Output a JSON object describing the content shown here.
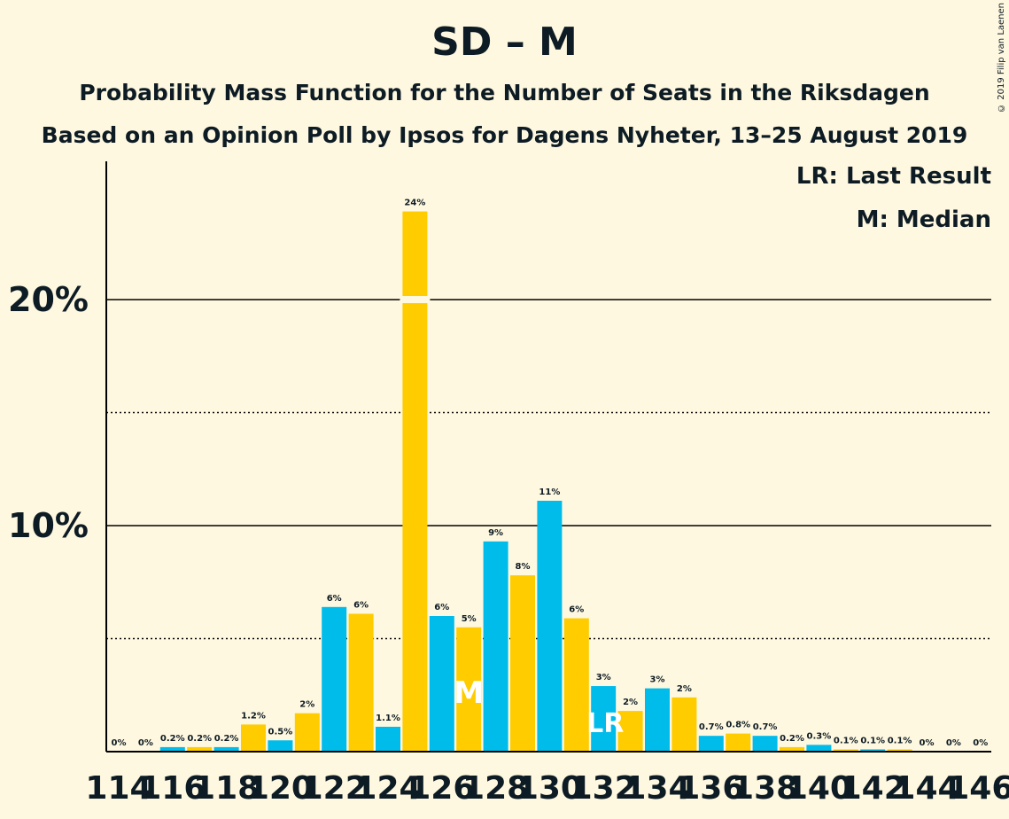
{
  "title": "SD – M",
  "subtitle_line1": "Probability Mass Function for the Number of Seats in the Riksdagen",
  "subtitle_line2": "Based on an Opinion Poll by Ipsos for Dagens Nyheter, 13–25 August 2019",
  "legend": {
    "last_result": "LR: Last Result",
    "median": "M: Median"
  },
  "copyright": "© 2019 Filip van Laenen",
  "colors": {
    "yellow": "#FFCC00",
    "blue": "#00BCEB",
    "background": "#FFF8E0",
    "text": "#0d1b24"
  },
  "chart_data": {
    "type": "bar",
    "x": [
      114,
      115,
      116,
      117,
      118,
      119,
      120,
      121,
      122,
      123,
      124,
      125,
      126,
      127,
      128,
      129,
      130,
      131,
      132,
      133,
      134,
      135,
      136,
      137,
      138,
      139,
      140,
      141,
      142,
      143,
      144,
      145,
      146
    ],
    "values": [
      0,
      0,
      0.2,
      0.2,
      0.2,
      1.2,
      0.5,
      1.7,
      6.4,
      6.1,
      1.1,
      23.9,
      6.0,
      5.5,
      9.3,
      7.8,
      11.1,
      5.9,
      2.9,
      1.8,
      2.8,
      2.4,
      0.7,
      0.8,
      0.7,
      0.2,
      0.3,
      0.1,
      0.1,
      0.1,
      0,
      0,
      0
    ],
    "data_labels": [
      "0%",
      "0%",
      "0.2%",
      "0.2%",
      "0.2%",
      "1.2%",
      "0.5%",
      "2%",
      "6%",
      "6%",
      "1.1%",
      "24%",
      "6%",
      "5%",
      "9%",
      "8%",
      "11%",
      "6%",
      "3%",
      "2%",
      "3%",
      "2%",
      "0.7%",
      "0.8%",
      "0.7%",
      "0.2%",
      "0.3%",
      "0.1%",
      "0.1%",
      "0.1%",
      "0%",
      "0%",
      "0%"
    ],
    "x_tick_labels": [
      "114",
      "116",
      "118",
      "120",
      "122",
      "124",
      "126",
      "128",
      "130",
      "132",
      "134",
      "136",
      "138",
      "140",
      "142",
      "144",
      "146"
    ],
    "y_tick_labels": [
      "10%",
      "20%"
    ],
    "ylim": [
      0,
      26
    ],
    "gridlines_solid": [
      10,
      20
    ],
    "gridlines_dotted": [
      5,
      15
    ],
    "median_seat": 127,
    "median_marker": "M",
    "last_result_seat": 132,
    "last_result_marker": "LR"
  }
}
